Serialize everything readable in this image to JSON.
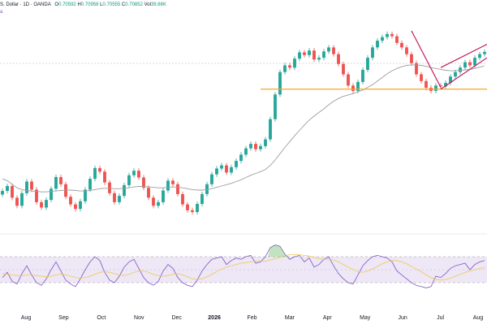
{
  "header": {
    "pair": "S. Dollar",
    "interval": "1D",
    "source": "OANDA",
    "o_label": "O",
    "o_value": "0.70592",
    "h_label": "H",
    "h_value": "0.70958",
    "l_label": "L",
    "l_value": "0.70555",
    "c_label": "C",
    "c_value": "0.70852",
    "vol_label": "Vol",
    "vol_value": "39.66K",
    "ma_label": "a"
  },
  "chart_data": [
    {
      "type": "candlestick",
      "title": "",
      "xlabel": "",
      "ylabel": "",
      "grid": false,
      "x_ticks": [
        "Aug",
        "Sep",
        "Oct",
        "Nov",
        "Dec",
        "2026",
        "Feb",
        "Mar",
        "Apr",
        "May",
        "Jun",
        "Jul",
        "Aug"
      ],
      "colors": {
        "up": "#26a69a",
        "down": "#ef5350",
        "ma": "#9e9e9e",
        "support": "#f5a623",
        "channel": "#c2185b"
      },
      "series": [
        {
          "values": [
            0.6425,
            0.6436,
            0.641,
            0.6392,
            0.642,
            0.6446,
            0.6428,
            0.64,
            0.6388,
            0.6405,
            0.643,
            0.6456,
            0.644,
            0.6412,
            0.6395,
            0.6385,
            0.6402,
            0.6428,
            0.6452,
            0.6476,
            0.6468,
            0.6444,
            0.642,
            0.64,
            0.6414,
            0.6438,
            0.646,
            0.647,
            0.6455,
            0.6432,
            0.641,
            0.6392,
            0.64,
            0.6426,
            0.6448,
            0.644,
            0.6418,
            0.6395,
            0.6382,
            0.6378,
            0.6396,
            0.6418,
            0.644,
            0.6462,
            0.6475,
            0.6482,
            0.6466,
            0.6478,
            0.6492,
            0.6506,
            0.652,
            0.653,
            0.6518,
            0.6525,
            0.654,
            0.6585,
            0.664,
            0.669,
            0.6705,
            0.67,
            0.672,
            0.6734,
            0.6728,
            0.6738,
            0.6718,
            0.6722,
            0.6736,
            0.6745,
            0.673,
            0.6708,
            0.6685,
            0.666,
            0.6648,
            0.6668,
            0.6695,
            0.6722,
            0.6745,
            0.676,
            0.6768,
            0.6775,
            0.677,
            0.6755,
            0.6745,
            0.673,
            0.671,
            0.6685,
            0.667,
            0.6655,
            0.6648,
            0.666,
            0.6658,
            0.6666,
            0.668,
            0.669,
            0.67,
            0.6712,
            0.6705,
            0.6722,
            0.673,
            0.6735
          ]
        },
        {
          "values": [
            0.6452,
            0.6448,
            0.644,
            0.6432,
            0.6428,
            0.6426,
            0.6425,
            0.6424,
            0.6423,
            0.6423,
            0.6424,
            0.6425,
            0.6426,
            0.6427,
            0.6427,
            0.6426,
            0.6425,
            0.6425,
            0.6426,
            0.6428,
            0.643,
            0.6431,
            0.6431,
            0.643,
            0.643,
            0.6431,
            0.6432,
            0.6434,
            0.6435,
            0.6435,
            0.6434,
            0.6433,
            0.6432,
            0.6432,
            0.6433,
            0.6434,
            0.6433,
            0.6432,
            0.643,
            0.6428,
            0.6427,
            0.6427,
            0.6428,
            0.643,
            0.6433,
            0.6436,
            0.6439,
            0.6442,
            0.6446,
            0.645,
            0.6455,
            0.646,
            0.6464,
            0.6468,
            0.6473,
            0.6482,
            0.6494,
            0.6508,
            0.6522,
            0.6535,
            0.6548,
            0.656,
            0.6572,
            0.6583,
            0.6592,
            0.66,
            0.6608,
            0.6617,
            0.6625,
            0.6631,
            0.6636,
            0.6639,
            0.6642,
            0.6646,
            0.665,
            0.6656,
            0.6662,
            0.667,
            0.6678,
            0.6686,
            0.6693,
            0.6698,
            0.6702,
            0.6705,
            0.6706,
            0.6706,
            0.6705,
            0.6703,
            0.67,
            0.6698,
            0.6696,
            0.6694,
            0.6693,
            0.6693,
            0.6694,
            0.6695,
            0.6696,
            0.6698,
            0.6701,
            0.6704
          ]
        }
      ],
      "ylim": [
        0.634,
        0.68
      ]
    },
    {
      "type": "line",
      "title": "",
      "series": [
        {
          "values": [
            38,
            46,
            32,
            28,
            44,
            56,
            42,
            30,
            26,
            36,
            50,
            62,
            48,
            34,
            28,
            24,
            36,
            50,
            62,
            70,
            64,
            46,
            34,
            30,
            40,
            54,
            62,
            66,
            52,
            38,
            30,
            26,
            32,
            48,
            58,
            52,
            38,
            30,
            26,
            24,
            34,
            48,
            58,
            66,
            68,
            70,
            58,
            64,
            68,
            66,
            70,
            72,
            60,
            62,
            70,
            84,
            88,
            86,
            74,
            66,
            70,
            72,
            62,
            68,
            54,
            58,
            66,
            70,
            56,
            44,
            36,
            30,
            28,
            42,
            56,
            64,
            70,
            72,
            70,
            68,
            62,
            48,
            42,
            36,
            30,
            26,
            24,
            22,
            24,
            40,
            38,
            44,
            52,
            56,
            58,
            60,
            50,
            58,
            62,
            64
          ]
        },
        {
          "values": [
            44,
            43,
            42,
            41,
            41,
            42,
            42,
            41,
            40,
            39,
            40,
            42,
            43,
            42,
            40,
            38,
            37,
            38,
            40,
            43,
            46,
            47,
            46,
            44,
            42,
            41,
            43,
            46,
            48,
            48,
            46,
            43,
            41,
            40,
            41,
            43,
            44,
            42,
            39,
            36,
            35,
            36,
            39,
            43,
            47,
            51,
            54,
            56,
            58,
            60,
            61,
            62,
            63,
            63,
            63,
            65,
            67,
            69,
            71,
            73,
            73,
            73,
            72,
            71,
            69,
            67,
            66,
            66,
            65,
            62,
            58,
            54,
            50,
            47,
            46,
            48,
            51,
            55,
            59,
            62,
            64,
            64,
            62,
            59,
            55,
            51,
            47,
            42,
            38,
            35,
            34,
            35,
            37,
            40,
            43,
            46,
            48,
            50,
            52,
            53
          ]
        }
      ],
      "bands": [
        30,
        70
      ],
      "ylim": [
        0,
        100
      ]
    }
  ]
}
